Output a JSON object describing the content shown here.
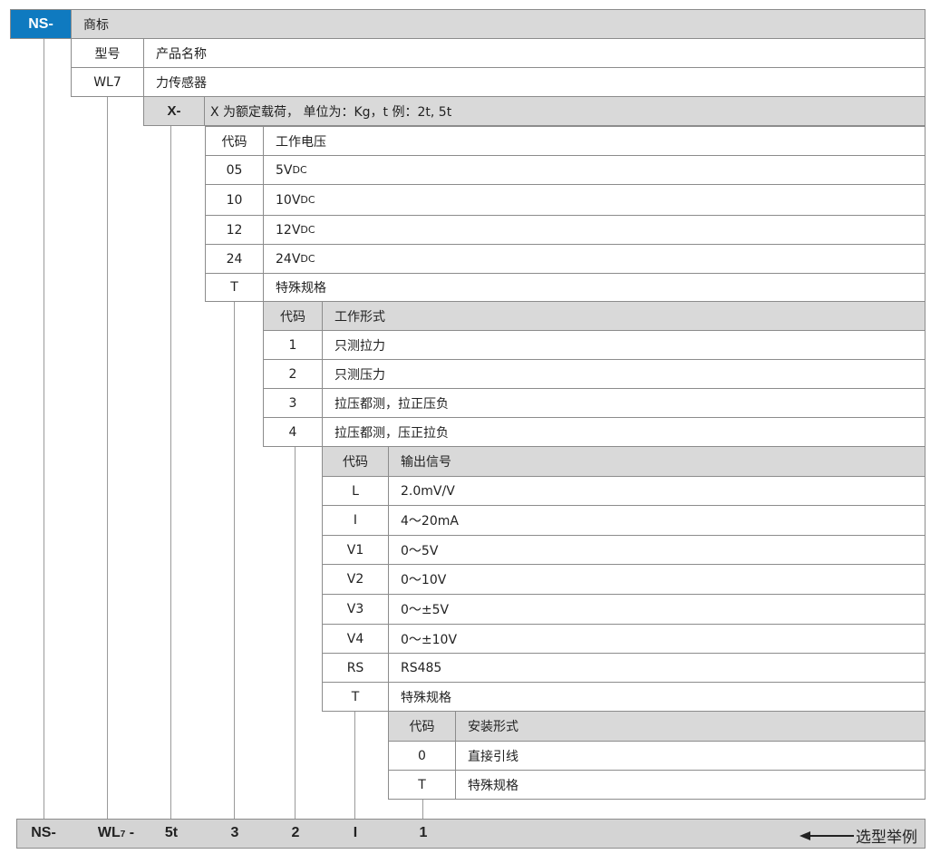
{
  "colors": {
    "brand": "#0f7ac0",
    "header_gray": "#d9d9d9",
    "bar_gray": "#d4d4d4"
  },
  "brand": {
    "code": "NS-",
    "label": "商标"
  },
  "model": {
    "header_code": "型号",
    "header_desc": "产品名称",
    "code": "WL7",
    "desc": "力传感器"
  },
  "load": {
    "code": "X-",
    "desc": "X 为额定载荷， 单位为：Kg，t 例：2t, 5t"
  },
  "voltage": {
    "header_code": "代码",
    "header_desc": "工作电压",
    "rows": [
      {
        "code": "05",
        "desc": "5V",
        "unit": "DC"
      },
      {
        "code": "10",
        "desc": "10V",
        "unit": "DC"
      },
      {
        "code": "12",
        "desc": "12V",
        "unit": "DC"
      },
      {
        "code": "24",
        "desc": "24V",
        "unit": "DC"
      },
      {
        "code": "T",
        "desc": "特殊规格",
        "unit": ""
      }
    ]
  },
  "mode": {
    "header_code": "代码",
    "header_desc": "工作形式",
    "rows": [
      {
        "code": "1",
        "desc": "只测拉力"
      },
      {
        "code": "2",
        "desc": "只测压力"
      },
      {
        "code": "3",
        "desc": "拉压都测，拉正压负"
      },
      {
        "code": "4",
        "desc": "拉压都测，压正拉负"
      }
    ]
  },
  "output": {
    "header_code": "代码",
    "header_desc": "输出信号",
    "rows": [
      {
        "code": "L",
        "desc": "2.0mV/V"
      },
      {
        "code": "I",
        "desc": "4～20mA"
      },
      {
        "code": "V1",
        "desc": "0～5V"
      },
      {
        "code": "V2",
        "desc": "0～10V"
      },
      {
        "code": "V3",
        "desc": "0～±5V"
      },
      {
        "code": "V4",
        "desc": "0～±10V"
      },
      {
        "code": "RS",
        "desc": "RS485"
      },
      {
        "code": "T",
        "desc": "特殊规格"
      }
    ]
  },
  "install": {
    "header_code": "代码",
    "header_desc": "安装形式",
    "rows": [
      {
        "code": "0",
        "desc": "直接引线"
      },
      {
        "code": "T",
        "desc": "特殊规格"
      }
    ]
  },
  "example": {
    "parts": [
      "NS-",
      "WL",
      "7",
      " -",
      "5t",
      "3",
      "2",
      "I",
      "1"
    ],
    "label": "选型举例",
    "arrow_icon": "left-arrow"
  }
}
